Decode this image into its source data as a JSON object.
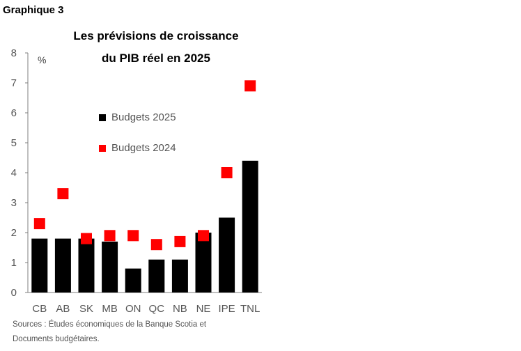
{
  "header": {
    "label": "Graphique 3"
  },
  "colors": {
    "budgets_2025": "#000000",
    "budgets_2024": "#ff0000",
    "axis": "#7f7f7f"
  },
  "chart_data": {
    "type": "bar",
    "title": [
      "Les prévisions de croissance",
      "du PIB réel en 2025"
    ],
    "unit_label": "%",
    "categories": [
      "CB",
      "AB",
      "SK",
      "MB",
      "ON",
      "QC",
      "NB",
      "NE",
      "IPE",
      "TNL"
    ],
    "series": [
      {
        "name": "Budgets 2025",
        "kind": "bar",
        "values": [
          1.8,
          1.8,
          1.8,
          1.7,
          0.8,
          1.1,
          1.1,
          2.0,
          2.5,
          4.4
        ]
      },
      {
        "name": "Budgets 2024",
        "kind": "marker",
        "values": [
          2.3,
          3.3,
          1.8,
          1.9,
          1.9,
          1.6,
          1.7,
          1.9,
          4.0,
          6.9
        ]
      }
    ],
    "ylim": [
      0,
      8
    ],
    "yticks": [
      0,
      1,
      2,
      3,
      4,
      5,
      6,
      7,
      8
    ],
    "legend_position": "center-left",
    "grid": false
  },
  "source": {
    "line1": "Sources : Études économiques de la Banque Scotia et",
    "line2": "Documents budgétaires."
  }
}
